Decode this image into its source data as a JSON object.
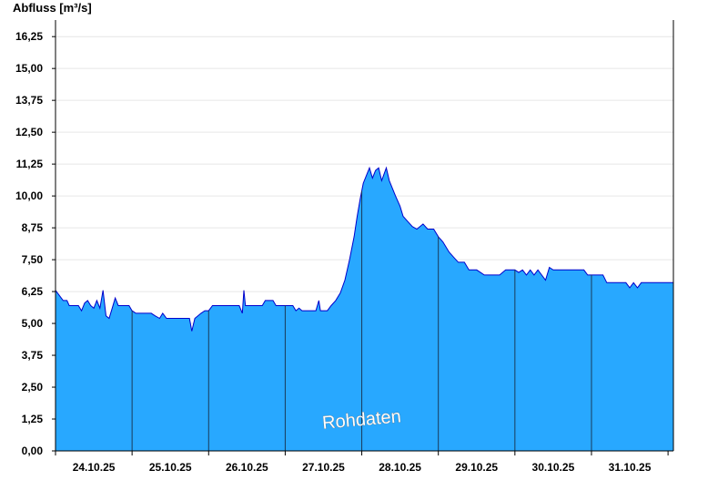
{
  "chart_data": {
    "type": "area",
    "ylabel": "Abfluss [m³/s]",
    "ylim": [
      0,
      16.9
    ],
    "yticks": [
      "0,00",
      "1,25",
      "2,50",
      "3,75",
      "5,00",
      "6,25",
      "7,50",
      "8,75",
      "10,00",
      "11,25",
      "12,50",
      "13,75",
      "15,00",
      "16,25"
    ],
    "ytick_values": [
      0,
      1.25,
      2.5,
      3.75,
      5,
      6.25,
      7.5,
      8.75,
      10,
      11.25,
      12.5,
      13.75,
      15,
      16.25
    ],
    "xlim": [
      0,
      8.07
    ],
    "xticks": [
      {
        "label": "24.10.25",
        "x": 0.5
      },
      {
        "label": "25.10.25",
        "x": 1.5
      },
      {
        "label": "26.10.25",
        "x": 2.5
      },
      {
        "label": "27.10.25",
        "x": 3.5
      },
      {
        "label": "28.10.25",
        "x": 4.5
      },
      {
        "label": "29.10.25",
        "x": 5.5
      },
      {
        "label": "30.10.25",
        "x": 6.5
      },
      {
        "label": "31.10.25",
        "x": 7.5
      }
    ],
    "day_separators": [
      1,
      2,
      3,
      4,
      5,
      6,
      7
    ],
    "grid": true,
    "annotation": "Rohdaten",
    "colors": {
      "fill": "#28a8ff",
      "line": "#0000cc",
      "grid": "#e6e6e6",
      "axis": "#000000"
    },
    "series": [
      {
        "points": [
          [
            0.0,
            6.3
          ],
          [
            0.05,
            6.1
          ],
          [
            0.1,
            5.9
          ],
          [
            0.15,
            5.9
          ],
          [
            0.18,
            5.7
          ],
          [
            0.3,
            5.7
          ],
          [
            0.34,
            5.5
          ],
          [
            0.38,
            5.8
          ],
          [
            0.42,
            5.9
          ],
          [
            0.46,
            5.7
          ],
          [
            0.5,
            5.6
          ],
          [
            0.54,
            5.9
          ],
          [
            0.58,
            5.6
          ],
          [
            0.62,
            6.3
          ],
          [
            0.66,
            5.3
          ],
          [
            0.7,
            5.2
          ],
          [
            0.74,
            5.6
          ],
          [
            0.78,
            6.0
          ],
          [
            0.82,
            5.7
          ],
          [
            0.86,
            5.7
          ],
          [
            0.96,
            5.7
          ],
          [
            1.0,
            5.5
          ],
          [
            1.05,
            5.4
          ],
          [
            1.25,
            5.4
          ],
          [
            1.3,
            5.3
          ],
          [
            1.36,
            5.2
          ],
          [
            1.4,
            5.4
          ],
          [
            1.45,
            5.2
          ],
          [
            1.5,
            5.2
          ],
          [
            1.75,
            5.2
          ],
          [
            1.78,
            4.7
          ],
          [
            1.82,
            5.2
          ],
          [
            1.86,
            5.3
          ],
          [
            1.9,
            5.4
          ],
          [
            1.95,
            5.5
          ],
          [
            2.0,
            5.5
          ],
          [
            2.05,
            5.7
          ],
          [
            2.4,
            5.7
          ],
          [
            2.44,
            5.4
          ],
          [
            2.46,
            6.3
          ],
          [
            2.48,
            5.7
          ],
          [
            2.7,
            5.7
          ],
          [
            2.74,
            5.9
          ],
          [
            2.84,
            5.9
          ],
          [
            2.88,
            5.7
          ],
          [
            3.1,
            5.7
          ],
          [
            3.14,
            5.5
          ],
          [
            3.18,
            5.6
          ],
          [
            3.22,
            5.5
          ],
          [
            3.4,
            5.5
          ],
          [
            3.44,
            5.9
          ],
          [
            3.46,
            5.5
          ],
          [
            3.55,
            5.5
          ],
          [
            3.6,
            5.7
          ],
          [
            3.66,
            5.9
          ],
          [
            3.72,
            6.2
          ],
          [
            3.78,
            6.7
          ],
          [
            3.84,
            7.5
          ],
          [
            3.9,
            8.4
          ],
          [
            3.94,
            9.2
          ],
          [
            3.98,
            9.9
          ],
          [
            4.02,
            10.5
          ],
          [
            4.06,
            10.8
          ],
          [
            4.1,
            11.1
          ],
          [
            4.14,
            10.7
          ],
          [
            4.18,
            11.0
          ],
          [
            4.22,
            11.1
          ],
          [
            4.26,
            10.6
          ],
          [
            4.32,
            11.1
          ],
          [
            4.36,
            10.6
          ],
          [
            4.4,
            10.3
          ],
          [
            4.44,
            10.0
          ],
          [
            4.5,
            9.6
          ],
          [
            4.54,
            9.2
          ],
          [
            4.6,
            9.0
          ],
          [
            4.66,
            8.8
          ],
          [
            4.72,
            8.7
          ],
          [
            4.8,
            8.9
          ],
          [
            4.86,
            8.7
          ],
          [
            4.94,
            8.7
          ],
          [
            5.0,
            8.4
          ],
          [
            5.06,
            8.2
          ],
          [
            5.1,
            8.0
          ],
          [
            5.14,
            7.8
          ],
          [
            5.2,
            7.6
          ],
          [
            5.26,
            7.4
          ],
          [
            5.34,
            7.4
          ],
          [
            5.4,
            7.1
          ],
          [
            5.5,
            7.1
          ],
          [
            5.55,
            7.0
          ],
          [
            5.6,
            6.9
          ],
          [
            5.7,
            6.9
          ],
          [
            5.8,
            6.9
          ],
          [
            5.88,
            7.1
          ],
          [
            5.95,
            7.1
          ],
          [
            6.0,
            7.1
          ],
          [
            6.05,
            7.0
          ],
          [
            6.1,
            7.1
          ],
          [
            6.15,
            6.9
          ],
          [
            6.2,
            7.1
          ],
          [
            6.25,
            6.9
          ],
          [
            6.3,
            7.1
          ],
          [
            6.4,
            6.7
          ],
          [
            6.45,
            7.2
          ],
          [
            6.5,
            7.1
          ],
          [
            6.7,
            7.1
          ],
          [
            6.9,
            7.1
          ],
          [
            6.95,
            6.9
          ],
          [
            7.0,
            6.9
          ],
          [
            7.15,
            6.9
          ],
          [
            7.2,
            6.6
          ],
          [
            7.45,
            6.6
          ],
          [
            7.5,
            6.4
          ],
          [
            7.55,
            6.6
          ],
          [
            7.6,
            6.4
          ],
          [
            7.65,
            6.6
          ],
          [
            7.8,
            6.6
          ],
          [
            7.9,
            6.6
          ],
          [
            8.07,
            6.6
          ]
        ]
      }
    ]
  }
}
